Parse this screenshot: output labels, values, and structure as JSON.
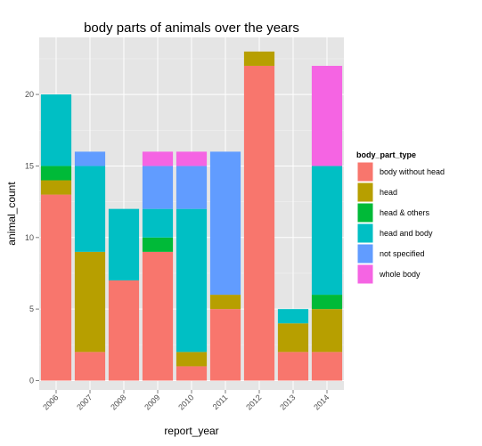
{
  "chart_data": {
    "type": "bar",
    "stacked": true,
    "title": "body parts of animals over the years",
    "xlabel": "report_year",
    "ylabel": "animal_count",
    "categories": [
      "2006",
      "2007",
      "2008",
      "2009",
      "2010",
      "2011",
      "2012",
      "2013",
      "2014"
    ],
    "ylim": [
      0,
      24
    ],
    "yticks": [
      0,
      5,
      10,
      15,
      20
    ],
    "grid": true,
    "legend": {
      "title": "body_part_type",
      "position": "right"
    },
    "series": [
      {
        "name": "body without head",
        "color": "#F8766D",
        "values": [
          13,
          2,
          7,
          9,
          1,
          5,
          22,
          2,
          2
        ]
      },
      {
        "name": "head",
        "color": "#B79F00",
        "values": [
          1,
          7,
          0,
          0,
          1,
          1,
          1,
          2,
          3
        ]
      },
      {
        "name": "head & others",
        "color": "#00BA38",
        "values": [
          1,
          0,
          0,
          1,
          0,
          0,
          0,
          0,
          1
        ]
      },
      {
        "name": "head and body",
        "color": "#00BFC4",
        "values": [
          5,
          6,
          5,
          2,
          10,
          0,
          0,
          1,
          9
        ]
      },
      {
        "name": "not specified",
        "color": "#619CFF",
        "values": [
          0,
          1,
          0,
          3,
          3,
          10,
          0,
          0,
          0
        ]
      },
      {
        "name": "whole body",
        "color": "#F564E3",
        "values": [
          0,
          0,
          0,
          1,
          1,
          0,
          0,
          0,
          7
        ]
      }
    ]
  }
}
